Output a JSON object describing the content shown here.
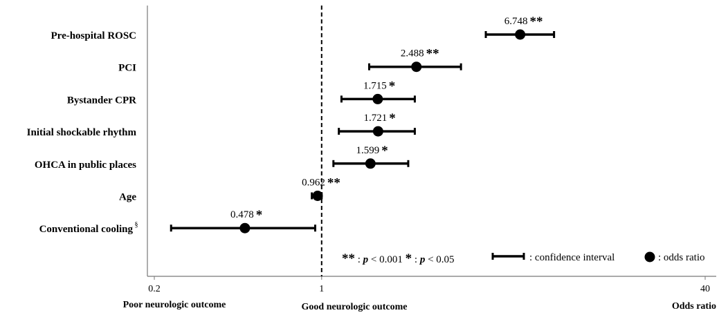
{
  "chart_data": {
    "type": "forest",
    "scale": "log",
    "xlim": [
      0.2,
      40
    ],
    "reference_line": 1,
    "x_ticks": [
      {
        "value": 0.2,
        "label": "0.2"
      },
      {
        "value": 1,
        "label": "1"
      },
      {
        "value": 40,
        "label": "40"
      }
    ],
    "bottom_labels": {
      "left": "Poor neurologic outcome",
      "middle": "Good neurologic outcome",
      "right": "Odds ratio"
    },
    "rows": [
      {
        "label": "Pre-hospital ROSC",
        "sup": "",
        "or": 6.748,
        "or_text": "6.748",
        "lo": 4.85,
        "hi": 9.35,
        "sig": "**"
      },
      {
        "label": "PCI",
        "sup": "",
        "or": 2.488,
        "or_text": "2.488",
        "lo": 1.58,
        "hi": 3.82,
        "sig": "**"
      },
      {
        "label": "Bystander CPR",
        "sup": "",
        "or": 1.715,
        "or_text": "1.715",
        "lo": 1.21,
        "hi": 2.45,
        "sig": "*"
      },
      {
        "label": "Initial shockable rhythm",
        "sup": "",
        "or": 1.721,
        "or_text": "1.721",
        "lo": 1.18,
        "hi": 2.45,
        "sig": "*"
      },
      {
        "label": "OHCA in public places",
        "sup": "",
        "or": 1.599,
        "or_text": "1.599",
        "lo": 1.12,
        "hi": 2.3,
        "sig": "*"
      },
      {
        "label": "Age",
        "sup": "",
        "or": 0.962,
        "or_text": "0.962",
        "lo": 0.91,
        "hi": 1.0,
        "sig": "**"
      },
      {
        "label": "Conventional cooling",
        "sup": "§",
        "or": 0.478,
        "or_text": "0.478",
        "lo": 0.235,
        "hi": 0.94,
        "sig": "*"
      }
    ],
    "legend": {
      "p1_stars": "**",
      "p1_p": "p",
      "p1_rest": " < 0.001",
      "p2_stars": "*",
      "p2_p": "p",
      "p2_rest": " < 0.05",
      "ci_label": ": confidence interval",
      "or_label": ": odds ratio"
    }
  }
}
